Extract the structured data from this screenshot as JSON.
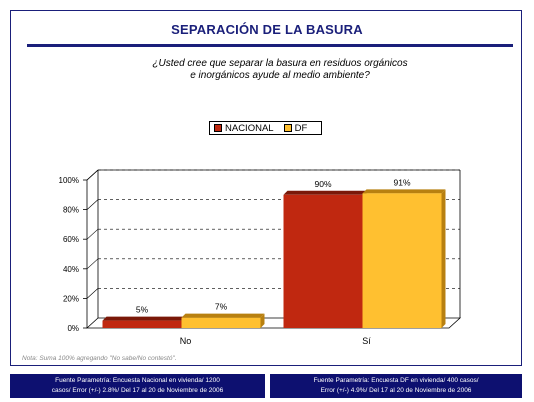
{
  "title": "SEPARACIÓN DE LA BASURA",
  "question_line1": "¿Usted cree que separar la basura en residuos orgánicos",
  "question_line2": "e inorgánicos ayude al medio ambiente?",
  "note": "Nota: Suma 100% agregando \"No sabe/No contestó\".",
  "footer_left_line1": "Fuente Parametría: Encuesta Nacional en vivienda/ 1200",
  "footer_left_line2": "casos/ Error (+/-) 2.8%/ Del 17 al 20 de Noviembre de 2006",
  "footer_right_line1": "Fuente Parametría: Encuesta DF en vivienda/ 400 casos/",
  "footer_right_line2": "Error (+/-) 4.9%/ Del 17 al 20 de Noviembre de 2006",
  "colors": {
    "nacional": "#c02810",
    "df": "#ffc030",
    "border": "#1a1f7a",
    "footer_bg": "#0d1070"
  },
  "chart_data": {
    "type": "bar",
    "categories": [
      "No",
      "Sí"
    ],
    "series": [
      {
        "name": "NACIONAL",
        "values": [
          5,
          90
        ],
        "labels": [
          "5%",
          "90%"
        ]
      },
      {
        "name": "DF",
        "values": [
          7,
          91
        ],
        "labels": [
          "7%",
          "91%"
        ]
      }
    ],
    "ylim": [
      0,
      100
    ],
    "yticks": [
      "0%",
      "20%",
      "40%",
      "60%",
      "80%",
      "100%"
    ],
    "ytick_values": [
      0,
      20,
      40,
      60,
      80,
      100
    ],
    "legend_position": "top-center",
    "grid": true
  }
}
